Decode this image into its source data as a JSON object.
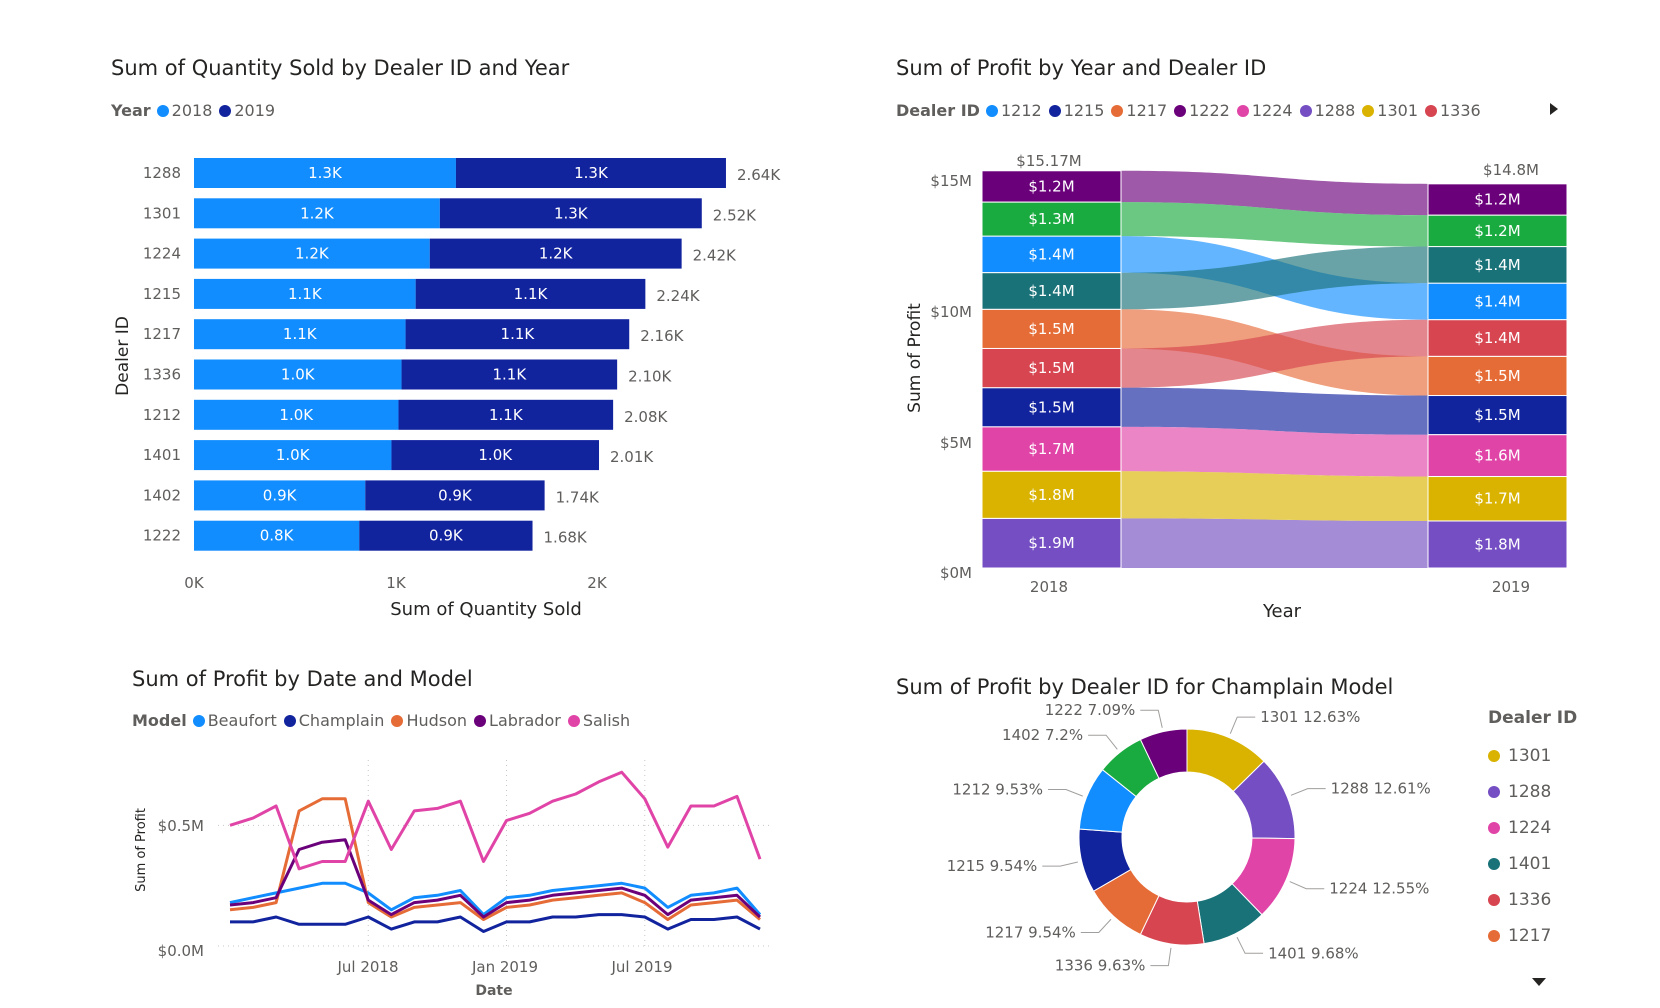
{
  "charts": {
    "quantity": {
      "title": "Sum of Quantity Sold by Dealer ID and Year",
      "legend_title": "Year",
      "xlabel": "Sum of Quantity Sold",
      "ylabel": "Dealer ID",
      "x_ticks": [
        "0K",
        "1K",
        "2K"
      ]
    },
    "ribbon": {
      "title": "Sum of Profit by Year and Dealer ID",
      "legend_title": "Dealer ID",
      "legend_more_icon": "triangle-right",
      "xlabel": "Year",
      "ylabel": "Sum of Profit",
      "y_ticks": [
        "$15M",
        "$10M",
        "$5M",
        "$0M"
      ],
      "x_ticks": [
        "2018",
        "2019"
      ],
      "totals": [
        "$15.17M",
        "$14.8M"
      ]
    },
    "line": {
      "title": "Sum of Profit by Date and Model",
      "legend_title": "Model",
      "xlabel": "Date",
      "ylabel": "Sum of Profit",
      "y_ticks": [
        "$0.5M",
        "$0.0M"
      ],
      "x_ticks": [
        "Jul 2018",
        "Jan 2019",
        "Jul 2019"
      ]
    },
    "donut": {
      "title": "Sum of Profit by Dealer ID for Champlain Model",
      "legend_title": "Dealer ID",
      "legend_more_icon": "triangle-down"
    }
  },
  "chart_data": [
    {
      "type": "bar",
      "orientation": "horizontal",
      "stacked": true,
      "title": "Sum of Quantity Sold by Dealer ID and Year",
      "categories": [
        "1288",
        "1301",
        "1224",
        "1215",
        "1217",
        "1336",
        "1212",
        "1401",
        "1402",
        "1222"
      ],
      "series": [
        {
          "name": "2018",
          "color": "#118DFF",
          "values": [
            1300,
            1220,
            1170,
            1100,
            1050,
            1030,
            1015,
            980,
            850,
            820
          ],
          "labels": [
            "1.3K",
            "1.2K",
            "1.2K",
            "1.1K",
            "1.1K",
            "1.0K",
            "1.0K",
            "1.0K",
            "0.9K",
            "0.8K"
          ]
        },
        {
          "name": "2019",
          "color": "#12239E",
          "values": [
            1340,
            1300,
            1250,
            1140,
            1110,
            1070,
            1065,
            1030,
            890,
            860
          ],
          "labels": [
            "1.3K",
            "1.3K",
            "1.2K",
            "1.1K",
            "1.1K",
            "1.1K",
            "1.1K",
            "1.0K",
            "0.9K",
            "0.9K"
          ]
        }
      ],
      "totals": [
        "2.64K",
        "2.52K",
        "2.42K",
        "2.24K",
        "2.16K",
        "2.10K",
        "2.08K",
        "2.01K",
        "1.74K",
        "1.68K"
      ],
      "xlim": [
        0,
        2700
      ],
      "xlabel": "Sum of Quantity Sold",
      "ylabel": "Dealer ID",
      "legend": "top-left"
    },
    {
      "type": "area",
      "subtype": "ribbon",
      "title": "Sum of Profit by Year and Dealer ID",
      "x": [
        "2018",
        "2019"
      ],
      "series": [
        {
          "name": "1212",
          "color": "#118DFF",
          "values": [
            1.4,
            1.4
          ],
          "labels": [
            "$1.4M",
            "$1.4M"
          ]
        },
        {
          "name": "1215",
          "color": "#12239E",
          "values": [
            1.5,
            1.5
          ],
          "labels": [
            "$1.5M",
            "$1.5M"
          ]
        },
        {
          "name": "1217",
          "color": "#E66C37",
          "values": [
            1.5,
            1.5
          ],
          "labels": [
            "$1.5M",
            "$1.5M"
          ]
        },
        {
          "name": "1222",
          "color": "#6B007B",
          "values": [
            1.2,
            1.2
          ],
          "labels": [
            "$1.2M",
            "$1.2M"
          ]
        },
        {
          "name": "1224",
          "color": "#E044A7",
          "values": [
            1.7,
            1.6
          ],
          "labels": [
            "$1.7M",
            "$1.6M"
          ]
        },
        {
          "name": "1288",
          "color": "#744EC2",
          "values": [
            1.9,
            1.8
          ],
          "labels": [
            "$1.9M",
            "$1.8M"
          ]
        },
        {
          "name": "1301",
          "color": "#D9B300",
          "values": [
            1.8,
            1.7
          ],
          "labels": [
            "$1.8M",
            "$1.7M"
          ]
        },
        {
          "name": "1336",
          "color": "#D64550",
          "values": [
            1.5,
            1.4
          ],
          "labels": [
            "$1.5M",
            "$1.4M"
          ]
        },
        {
          "name": "1401",
          "color": "#197278",
          "values": [
            1.4,
            1.4
          ],
          "labels": [
            "$1.4M",
            "$1.4M"
          ]
        },
        {
          "name": "1402",
          "color": "#1AAB40",
          "values": [
            1.3,
            1.2
          ],
          "labels": [
            "$1.3M",
            "$1.2M"
          ]
        }
      ],
      "legend_visible": [
        "1212",
        "1215",
        "1217",
        "1222",
        "1224",
        "1288",
        "1301",
        "1336"
      ],
      "order_bottom_to_top": [
        [
          "1288",
          "1301",
          "1224",
          "1215",
          "1336",
          "1217",
          "1401",
          "1212",
          "1402",
          "1222"
        ],
        [
          "1288",
          "1301",
          "1224",
          "1215",
          "1217",
          "1336",
          "1212",
          "1401",
          "1402",
          "1222"
        ]
      ],
      "totals": [
        "$15.17M",
        "$14.8M"
      ],
      "ylim": [
        0,
        15.2
      ],
      "y_unit": "$M",
      "xlabel": "Year",
      "ylabel": "Sum of Profit",
      "legend": "top-left"
    },
    {
      "type": "line",
      "title": "Sum of Profit by Date and Model",
      "x": [
        "2018-01",
        "2018-02",
        "2018-03",
        "2018-04",
        "2018-05",
        "2018-06",
        "2018-07",
        "2018-08",
        "2018-09",
        "2018-10",
        "2018-11",
        "2018-12",
        "2019-01",
        "2019-02",
        "2019-03",
        "2019-04",
        "2019-05",
        "2019-06",
        "2019-07",
        "2019-08",
        "2019-09",
        "2019-10",
        "2019-11",
        "2019-12"
      ],
      "series": [
        {
          "name": "Beaufort",
          "color": "#118DFF",
          "values": [
            0.18,
            0.2,
            0.22,
            0.24,
            0.26,
            0.26,
            0.22,
            0.15,
            0.2,
            0.21,
            0.23,
            0.13,
            0.2,
            0.21,
            0.23,
            0.24,
            0.25,
            0.26,
            0.24,
            0.16,
            0.21,
            0.22,
            0.24,
            0.13
          ]
        },
        {
          "name": "Champlain",
          "color": "#12239E",
          "values": [
            0.1,
            0.1,
            0.12,
            0.09,
            0.09,
            0.09,
            0.12,
            0.07,
            0.1,
            0.1,
            0.12,
            0.06,
            0.1,
            0.1,
            0.12,
            0.12,
            0.13,
            0.13,
            0.12,
            0.07,
            0.11,
            0.11,
            0.12,
            0.07
          ]
        },
        {
          "name": "Hudson",
          "color": "#E66C37",
          "values": [
            0.15,
            0.16,
            0.18,
            0.56,
            0.61,
            0.61,
            0.18,
            0.12,
            0.16,
            0.17,
            0.18,
            0.11,
            0.16,
            0.17,
            0.19,
            0.2,
            0.21,
            0.22,
            0.18,
            0.11,
            0.17,
            0.18,
            0.19,
            0.11
          ]
        },
        {
          "name": "Labrador",
          "color": "#6B007B",
          "values": [
            0.17,
            0.18,
            0.2,
            0.4,
            0.43,
            0.44,
            0.19,
            0.13,
            0.18,
            0.19,
            0.21,
            0.12,
            0.18,
            0.19,
            0.21,
            0.22,
            0.23,
            0.24,
            0.21,
            0.13,
            0.19,
            0.2,
            0.21,
            0.12
          ]
        },
        {
          "name": "Salish",
          "color": "#E044A7",
          "values": [
            0.5,
            0.53,
            0.58,
            0.32,
            0.35,
            0.35,
            0.6,
            0.4,
            0.56,
            0.57,
            0.6,
            0.35,
            0.52,
            0.55,
            0.6,
            0.63,
            0.68,
            0.72,
            0.61,
            0.41,
            0.58,
            0.58,
            0.62,
            0.36
          ]
        }
      ],
      "ylim": [
        0,
        0.75
      ],
      "y_unit": "$M",
      "xlabel": "Date",
      "ylabel": "Sum of Profit",
      "grid": true,
      "legend": "top-left"
    },
    {
      "type": "pie",
      "subtype": "donut",
      "title": "Sum of Profit by Dealer ID for Champlain Model",
      "slices": [
        {
          "name": "1301",
          "value": 12.63,
          "color": "#D9B300",
          "label": "1301 12.63%"
        },
        {
          "name": "1288",
          "value": 12.61,
          "color": "#744EC2",
          "label": "1288 12.61%"
        },
        {
          "name": "1224",
          "value": 12.55,
          "color": "#E044A7",
          "label": "1224 12.55%"
        },
        {
          "name": "1401",
          "value": 9.68,
          "color": "#197278",
          "label": "1401 9.68%"
        },
        {
          "name": "1336",
          "value": 9.63,
          "color": "#D64550",
          "label": "1336 9.63%"
        },
        {
          "name": "1217",
          "value": 9.54,
          "color": "#E66C37",
          "label": "1217 9.54%"
        },
        {
          "name": "1215",
          "value": 9.54,
          "color": "#12239E",
          "label": "1215 9.54%"
        },
        {
          "name": "1212",
          "value": 9.53,
          "color": "#118DFF",
          "label": "1212 9.53%"
        },
        {
          "name": "1402",
          "value": 7.2,
          "color": "#1AAB40",
          "label": "1402 7.2%"
        },
        {
          "name": "1222",
          "value": 7.09,
          "color": "#6B007B",
          "label": "1222 7.09%"
        }
      ],
      "legend_visible": [
        "1301",
        "1288",
        "1224",
        "1401",
        "1336",
        "1217"
      ],
      "legend": "right"
    }
  ]
}
